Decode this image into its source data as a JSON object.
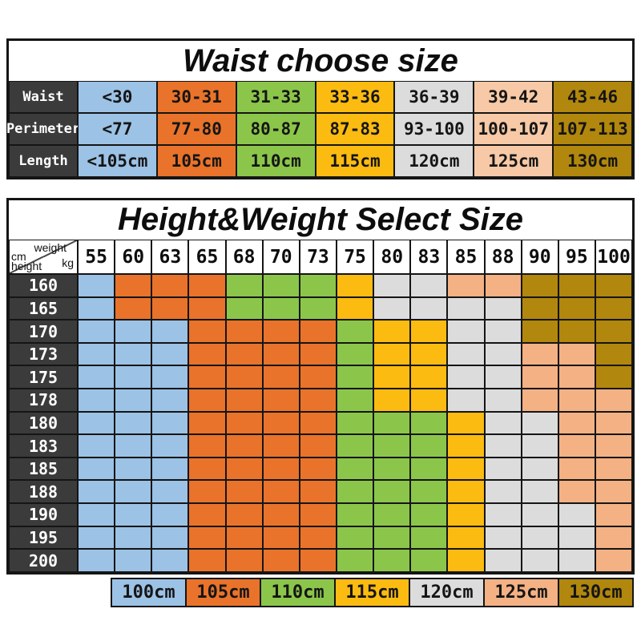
{
  "colors": {
    "page_bg": "#FFFFFF",
    "border": "#151515",
    "label_bg": "#3B3B3B",
    "label_text": "#FFFFFF",
    "blue": "#9CC2E5",
    "orange": "#E9732A",
    "green": "#8BC64A",
    "yellow": "#FBBB10",
    "gray": "#DCDCDC",
    "peach": "#F4B183",
    "peach_light": "#F7C9A6",
    "gold_dark": "#B1870D"
  },
  "waist_table": {
    "title": "Waist choose size",
    "column_colors": [
      "blue",
      "orange",
      "green",
      "yellow",
      "gray",
      "peach_light",
      "gold_dark"
    ],
    "rows": [
      {
        "label": "Waist",
        "cells": [
          "<30",
          "30-31",
          "31-33",
          "33-36",
          "36-39",
          "39-42",
          "43-46"
        ]
      },
      {
        "label": "Perimeter",
        "cells": [
          "<77",
          "77-80",
          "80-87",
          "87-83",
          "93-100",
          "100-107",
          "107-113"
        ]
      },
      {
        "label": "Length",
        "cells": [
          "<105cm",
          "105cm",
          "110cm",
          "115cm",
          "120cm",
          "125cm",
          "130cm"
        ]
      }
    ]
  },
  "size_table": {
    "title": "Height&Weight Select Size",
    "corner": {
      "top_label": "weight",
      "top_unit": "kg",
      "side_unit": "cm",
      "side_label": "height"
    },
    "weights": [
      "55",
      "60",
      "63",
      "65",
      "68",
      "70",
      "73",
      "75",
      "80",
      "83",
      "85",
      "88",
      "90",
      "95",
      "100"
    ],
    "color_codes": {
      "B": "blue",
      "O": "orange",
      "G": "green",
      "Y": "yellow",
      "S": "gray",
      "P": "peach",
      "D": "gold_dark"
    },
    "rows": [
      {
        "height": "160",
        "cells": "BOOOGGGYSSPPDDD"
      },
      {
        "height": "165",
        "cells": "BOOOGGGYSSSSDDD"
      },
      {
        "height": "170",
        "cells": "BBBOOOOGYYSSDDD"
      },
      {
        "height": "173",
        "cells": "BBBOOOOGYYSSPPD"
      },
      {
        "height": "175",
        "cells": "BBBOOOOGYYSSPPD"
      },
      {
        "height": "178",
        "cells": "BBBOOOOGYYSSPPP"
      },
      {
        "height": "180",
        "cells": "BBBOOOOGGGYSSPP"
      },
      {
        "height": "183",
        "cells": "BBBOOOOGGGYSSPP"
      },
      {
        "height": "185",
        "cells": "BBBOOOOGGGYSSPP"
      },
      {
        "height": "188",
        "cells": "BBBOOOOGGGYSSPP"
      },
      {
        "height": "190",
        "cells": "BBBOOOOGGGYSSSP"
      },
      {
        "height": "195",
        "cells": "BBBOOOOGGGYSSSP"
      },
      {
        "height": "200",
        "cells": "BBBOOOOGGGYSSSP"
      }
    ],
    "legend": [
      {
        "label": "100cm",
        "color": "blue"
      },
      {
        "label": "105cm",
        "color": "orange"
      },
      {
        "label": "110cm",
        "color": "green"
      },
      {
        "label": "115cm",
        "color": "yellow"
      },
      {
        "label": "120cm",
        "color": "gray"
      },
      {
        "label": "125cm",
        "color": "peach"
      },
      {
        "label": "130cm",
        "color": "gold_dark"
      }
    ]
  },
  "chart_data": [
    {
      "type": "table",
      "title": "Waist choose size",
      "row_headers": [
        "Waist",
        "Perimeter",
        "Length"
      ],
      "rows": [
        [
          "<30",
          "30-31",
          "31-33",
          "33-36",
          "36-39",
          "39-42",
          "43-46"
        ],
        [
          "<77",
          "77-80",
          "80-87",
          "87-83",
          "93-100",
          "100-107",
          "107-113"
        ],
        [
          "<105cm",
          "105cm",
          "110cm",
          "115cm",
          "120cm",
          "125cm",
          "130cm"
        ]
      ]
    },
    {
      "type": "heatmap",
      "title": "Height&Weight Select Size",
      "xlabel": "weight (kg)",
      "ylabel": "height (cm)",
      "x": [
        55,
        60,
        63,
        65,
        68,
        70,
        73,
        75,
        80,
        83,
        85,
        88,
        90,
        95,
        100
      ],
      "y": [
        160,
        165,
        170,
        173,
        175,
        178,
        180,
        183,
        185,
        188,
        190,
        195,
        200
      ],
      "values_cm": [
        [
          100,
          105,
          105,
          105,
          110,
          110,
          110,
          115,
          120,
          120,
          125,
          125,
          130,
          130,
          130
        ],
        [
          100,
          105,
          105,
          105,
          110,
          110,
          110,
          115,
          120,
          120,
          120,
          120,
          130,
          130,
          130
        ],
        [
          100,
          100,
          100,
          105,
          105,
          105,
          105,
          110,
          115,
          115,
          120,
          120,
          130,
          130,
          130
        ],
        [
          100,
          100,
          100,
          105,
          105,
          105,
          105,
          110,
          115,
          115,
          120,
          120,
          125,
          125,
          130
        ],
        [
          100,
          100,
          100,
          105,
          105,
          105,
          105,
          110,
          115,
          115,
          120,
          120,
          125,
          125,
          130
        ],
        [
          100,
          100,
          100,
          105,
          105,
          105,
          105,
          110,
          115,
          115,
          120,
          120,
          125,
          125,
          125
        ],
        [
          100,
          100,
          100,
          105,
          105,
          105,
          105,
          110,
          110,
          110,
          115,
          120,
          120,
          125,
          125
        ],
        [
          100,
          100,
          100,
          105,
          105,
          105,
          105,
          110,
          110,
          110,
          115,
          120,
          120,
          125,
          125
        ],
        [
          100,
          100,
          100,
          105,
          105,
          105,
          105,
          110,
          110,
          110,
          115,
          120,
          120,
          125,
          125
        ],
        [
          100,
          100,
          100,
          105,
          105,
          105,
          105,
          110,
          110,
          110,
          115,
          120,
          120,
          125,
          125
        ],
        [
          100,
          100,
          100,
          105,
          105,
          105,
          105,
          110,
          110,
          110,
          115,
          120,
          120,
          120,
          125
        ],
        [
          100,
          100,
          100,
          105,
          105,
          105,
          105,
          110,
          110,
          110,
          115,
          120,
          120,
          120,
          125
        ],
        [
          100,
          100,
          100,
          105,
          105,
          105,
          105,
          110,
          110,
          110,
          115,
          120,
          120,
          120,
          125
        ]
      ],
      "legend_position": "bottom",
      "legend": [
        "100cm",
        "105cm",
        "110cm",
        "115cm",
        "120cm",
        "125cm",
        "130cm"
      ]
    }
  ]
}
